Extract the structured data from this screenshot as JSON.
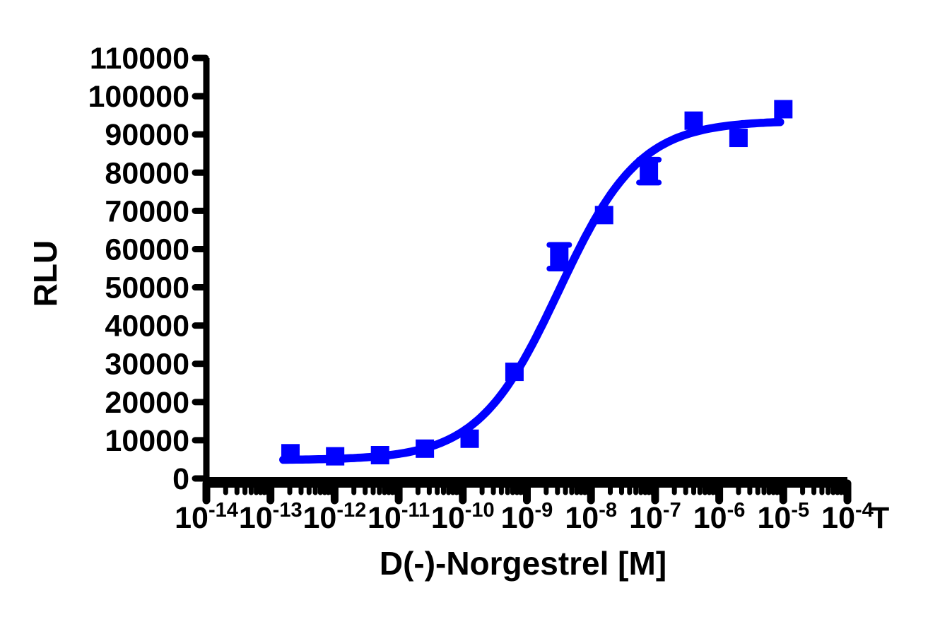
{
  "colors": {
    "series_blue": "#0000FF",
    "axis_black": "#000000",
    "background": "#FFFFFF"
  },
  "chart_data": {
    "type": "scatter",
    "title": "",
    "xlabel": "D(-)-Norgestrel [M]",
    "ylabel": "RLU",
    "legend": "none",
    "x_axis": {
      "scale": "log10",
      "label_base": "10",
      "exponents": [
        -14,
        -13,
        -12,
        -11,
        -10,
        -9,
        -8,
        -7,
        -6,
        -5,
        -4
      ],
      "end_annotation": "T",
      "minor_tick_multiples": [
        2,
        3,
        4,
        5,
        6,
        7,
        8,
        9
      ],
      "log_min": -14,
      "log_max": -4
    },
    "y_axis": {
      "min": 0,
      "max": 110000,
      "step": 10000,
      "tick_labels": [
        "0",
        "10000",
        "20000",
        "30000",
        "40000",
        "50000",
        "60000",
        "70000",
        "80000",
        "90000",
        "100000",
        "110000"
      ]
    },
    "series": [
      {
        "name": "D(-)-Norgestrel",
        "marker": "square",
        "color": "#0000FF",
        "points": [
          {
            "conc_m": 2.05e-13,
            "rlu": 6600,
            "err": 0
          },
          {
            "conc_m": 1.02e-12,
            "rlu": 5800,
            "err": 0
          },
          {
            "conc_m": 5.12e-12,
            "rlu": 6100,
            "err": 0
          },
          {
            "conc_m": 2.56e-11,
            "rlu": 7800,
            "err": 0
          },
          {
            "conc_m": 1.28e-10,
            "rlu": 10400,
            "err": 0
          },
          {
            "conc_m": 6.4e-10,
            "rlu": 27900,
            "err": 0
          },
          {
            "conc_m": 3.2e-09,
            "rlu": 58000,
            "err": 3100
          },
          {
            "conc_m": 1.6e-08,
            "rlu": 68900,
            "err": 0
          },
          {
            "conc_m": 8e-08,
            "rlu": 80400,
            "err": 3000
          },
          {
            "conc_m": 4e-07,
            "rlu": 93600,
            "err": 0
          },
          {
            "conc_m": 2e-06,
            "rlu": 89100,
            "err": 0
          },
          {
            "conc_m": 1e-05,
            "rlu": 96600,
            "err": 0
          }
        ]
      }
    ],
    "fit_curve": {
      "model": "four_parameter_logistic",
      "bottom": 4800,
      "top": 93600,
      "log_ec50": -8.5,
      "hill_slope": 0.69,
      "color": "#0000FF",
      "log_range": [
        -12.8,
        -5.01
      ]
    }
  }
}
